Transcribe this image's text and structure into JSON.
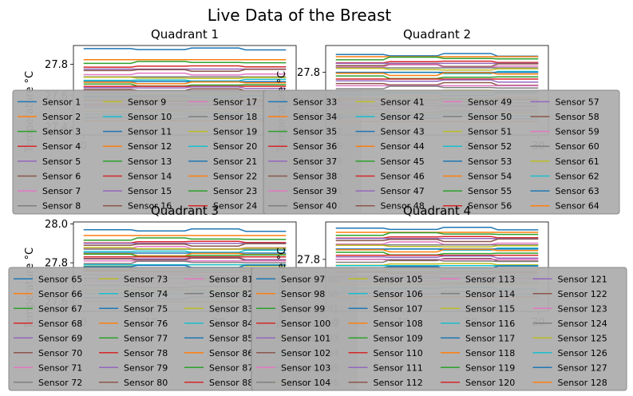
{
  "figure": {
    "title": "Live Data of the Breast"
  },
  "colors": [
    "#1f77b4",
    "#ff7f0e",
    "#2ca02c",
    "#d62728",
    "#9467bd",
    "#8c564b",
    "#e377c2",
    "#7f7f7f",
    "#bcbd22",
    "#17becf"
  ],
  "chart_data": [
    {
      "type": "line",
      "title": "Quadrant 1",
      "xlabel": "",
      "ylabel": "Temperature °C",
      "xlim": [
        -1.5,
        31.5
      ],
      "ylim": [
        27.35,
        27.92
      ],
      "xticks": [
        0,
        10,
        20,
        30
      ],
      "yticks": [
        27.4,
        27.6,
        27.8
      ],
      "ytick_labels": [
        "27.4",
        "27.6",
        "27.8"
      ],
      "grid": false,
      "legend": "lower-center, 4 columns",
      "series_first": 1,
      "series_count": 32,
      "series_prefix": "Sensor ",
      "series_base": [
        27.9,
        27.83,
        27.81,
        27.79,
        27.77,
        27.76,
        27.74,
        27.72,
        27.71,
        27.7,
        27.69,
        27.68,
        27.67,
        27.66,
        27.65,
        27.64,
        27.63,
        27.62,
        27.61,
        27.6,
        27.59,
        27.58,
        27.57,
        27.56,
        27.55,
        27.54,
        27.53,
        27.52,
        27.5,
        27.48,
        27.46,
        27.44
      ]
    },
    {
      "type": "line",
      "title": "Quadrant 2",
      "xlabel": "",
      "ylabel": "Temperature °C",
      "xlim": [
        -1.5,
        31.5
      ],
      "ylim": [
        27.52,
        27.92
      ],
      "xticks": [
        0,
        10,
        20,
        30
      ],
      "yticks": [
        27.6,
        27.8
      ],
      "ytick_labels": [
        "27.6",
        "27.8"
      ],
      "grid": false,
      "legend": "lower-center, 4 columns",
      "series_first": 33,
      "series_count": 32,
      "series_prefix": "Sensor ",
      "series_base": [
        27.88,
        27.87,
        27.86,
        27.85,
        27.84,
        27.83,
        27.83,
        27.82,
        27.81,
        27.8,
        27.8,
        27.79,
        27.78,
        27.77,
        27.76,
        27.75,
        27.74,
        27.73,
        27.72,
        27.71,
        27.7,
        27.69,
        27.68,
        27.67,
        27.66,
        27.65,
        27.64,
        27.63,
        27.62,
        27.61,
        27.6,
        27.58
      ]
    },
    {
      "type": "line",
      "title": "Quadrant 3",
      "xlabel": "",
      "ylabel": "Temperature °C",
      "xlim": [
        -1.5,
        31.5
      ],
      "ylim": [
        27.55,
        28.01
      ],
      "xticks": [
        0,
        10,
        20,
        30
      ],
      "yticks": [
        27.6,
        27.8,
        28.0
      ],
      "ytick_labels": [
        "27.6",
        "27.8",
        "28.0"
      ],
      "grid": false,
      "legend": "lower-center, 4 columns",
      "series_first": 65,
      "series_count": 32,
      "series_prefix": "Sensor ",
      "series_base": [
        27.97,
        27.94,
        27.92,
        27.91,
        27.9,
        27.89,
        27.88,
        27.87,
        27.87,
        27.86,
        27.85,
        27.84,
        27.84,
        27.83,
        27.82,
        27.82,
        27.81,
        27.8,
        27.79,
        27.79,
        27.78,
        27.77,
        27.76,
        27.75,
        27.74,
        27.72,
        27.7,
        27.68,
        27.66,
        27.64,
        27.62,
        27.6
      ]
    },
    {
      "type": "line",
      "title": "Quadrant 4",
      "xlabel": "",
      "ylabel": "Temperature °C",
      "xlim": [
        -1.5,
        31.5
      ],
      "ylim": [
        27.55,
        27.98
      ],
      "xticks": [
        0,
        10,
        20,
        30
      ],
      "yticks": [
        27.8
      ],
      "ytick_labels": [
        "27.8"
      ],
      "grid": false,
      "legend": "lower-center, 4 columns",
      "series_first": 97,
      "series_count": 32,
      "series_prefix": "Sensor ",
      "series_base": [
        27.95,
        27.93,
        27.92,
        27.91,
        27.9,
        27.89,
        27.88,
        27.87,
        27.86,
        27.85,
        27.85,
        27.84,
        27.83,
        27.82,
        27.81,
        27.8,
        27.8,
        27.79,
        27.78,
        27.77,
        27.76,
        27.75,
        27.74,
        27.73,
        27.72,
        27.71,
        27.7,
        27.69,
        27.68,
        27.66,
        27.64,
        27.62
      ]
    }
  ]
}
